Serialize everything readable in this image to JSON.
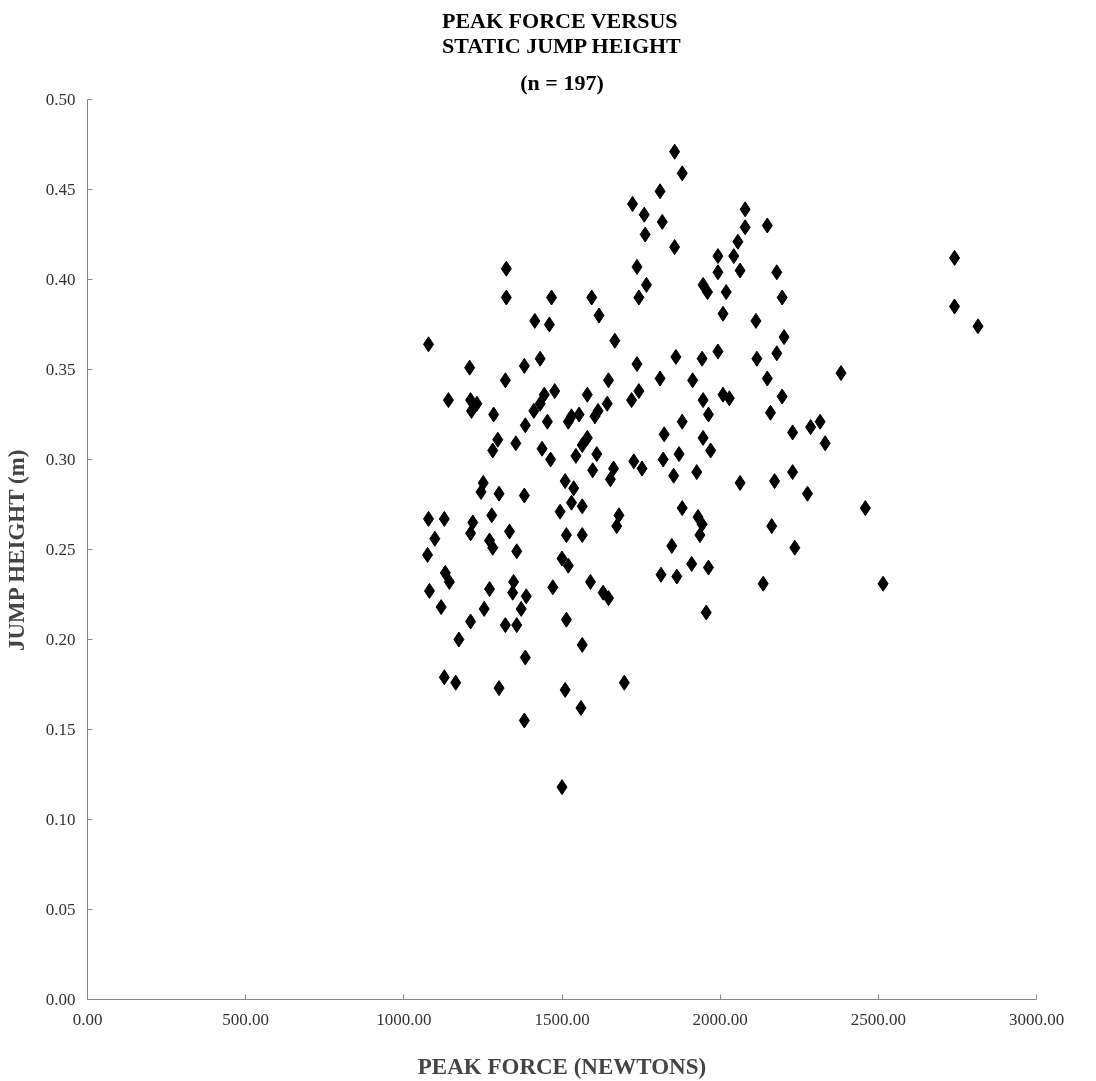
{
  "chart_data": {
    "type": "scatter",
    "title": "PEAK FORCE VERSUS\nSTATIC JUMP HEIGHT",
    "subtitle": "(n = 197)",
    "xlabel": "PEAK FORCE (NEWTONS)",
    "ylabel": "JUMP HEIGHT (m)",
    "marker": "diamond",
    "grid": false,
    "xlim": [
      0,
      3000
    ],
    "xticks": [
      {
        "value": 0,
        "label": "0.00"
      },
      {
        "value": 500,
        "label": "500.00"
      },
      {
        "value": 1000,
        "label": "1000.00"
      },
      {
        "value": 1500,
        "label": "1500.00"
      },
      {
        "value": 2000,
        "label": "2000.00"
      },
      {
        "value": 2500,
        "label": "2500.00"
      },
      {
        "value": 3000,
        "label": "3000.00"
      }
    ],
    "ylim": [
      0,
      0.5
    ],
    "yticks": [
      {
        "value": 0,
        "label": "0.00"
      },
      {
        "value": 0.05,
        "label": "0.05"
      },
      {
        "value": 0.1,
        "label": "0.10"
      },
      {
        "value": 0.15,
        "label": "0.15"
      },
      {
        "value": 0.2,
        "label": "0.20"
      },
      {
        "value": 0.25,
        "label": "0.25"
      },
      {
        "value": 0.3,
        "label": "0.30"
      },
      {
        "value": 0.35,
        "label": "0.35"
      },
      {
        "value": 0.4,
        "label": "0.40"
      },
      {
        "value": 0.45,
        "label": "0.45"
      },
      {
        "value": 0.5,
        "label": "0.50"
      }
    ],
    "series": [
      {
        "color": "#000000",
        "x": [
          1856,
          1880,
          1810,
          1723,
          1760,
          1817,
          1763,
          1856,
          2079,
          2079,
          2056,
          1993,
          2043,
          1993,
          2063,
          1946,
          1960,
          2019,
          2009,
          1324,
          1324,
          1467,
          1594,
          1617,
          1414,
          1460,
          1737,
          1767,
          1743,
          1078,
          1667,
          1208,
          1321,
          1381,
          1431,
          1647,
          1737,
          1810,
          1860,
          1913,
          1943,
          1993,
          1141,
          1211,
          1231,
          1214,
          1284,
          1444,
          1477,
          1431,
          1411,
          1454,
          1384,
          1580,
          1530,
          1520,
          1554,
          1643,
          1614,
          1604,
          1743,
          1720,
          1946,
          2009,
          2029,
          1963,
          1880,
          1823,
          1297,
          1281,
          1354,
          1437,
          1464,
          1580,
          1564,
          1544,
          1610,
          1597,
          1663,
          1653,
          1727,
          1753,
          1820,
          1870,
          1853,
          1946,
          1970,
          1926,
          2063,
          1251,
          1244,
          1301,
          1381,
          1510,
          1537,
          1494,
          1530,
          1564,
          1680,
          1673,
          1078,
          1128,
          1278,
          1218,
          1211,
          1334,
          1271,
          1281,
          1098,
          1075,
          1357,
          1514,
          1564,
          1500,
          1520,
          1880,
          1930,
          1943,
          1936,
          1847,
          1910,
          1963,
          1813,
          1863,
          1956,
          1131,
          1144,
          1081,
          1118,
          1271,
          1347,
          1344,
          1387,
          1371,
          1254,
          1211,
          1321,
          1357,
          1174,
          1471,
          1590,
          1630,
          1647,
          1514,
          1564,
          1384,
          1128,
          1164,
          1301,
          1510,
          1697,
          1560,
          1381,
          1500,
          2149,
          2179,
          2196,
          2113,
          2202,
          2116,
          2179,
          2149,
          2196,
          2159,
          2229,
          2286,
          2316,
          2332,
          2382,
          2741,
          2741,
          2815,
          2172,
          2229,
          2276,
          2459,
          2163,
          2236,
          2136,
          2515
        ],
        "values": [
          0.471,
          0.459,
          0.449,
          0.442,
          0.436,
          0.432,
          0.425,
          0.418,
          0.439,
          0.429,
          0.421,
          0.413,
          0.413,
          0.404,
          0.405,
          0.397,
          0.393,
          0.393,
          0.381,
          0.406,
          0.39,
          0.39,
          0.39,
          0.38,
          0.377,
          0.375,
          0.407,
          0.397,
          0.39,
          0.364,
          0.366,
          0.351,
          0.344,
          0.352,
          0.356,
          0.344,
          0.353,
          0.345,
          0.357,
          0.344,
          0.356,
          0.36,
          0.333,
          0.333,
          0.331,
          0.327,
          0.325,
          0.336,
          0.338,
          0.331,
          0.327,
          0.321,
          0.319,
          0.336,
          0.324,
          0.321,
          0.325,
          0.331,
          0.327,
          0.324,
          0.338,
          0.333,
          0.333,
          0.336,
          0.334,
          0.325,
          0.321,
          0.314,
          0.311,
          0.305,
          0.309,
          0.306,
          0.3,
          0.312,
          0.308,
          0.302,
          0.303,
          0.294,
          0.295,
          0.289,
          0.299,
          0.295,
          0.3,
          0.303,
          0.291,
          0.312,
          0.305,
          0.293,
          0.287,
          0.287,
          0.282,
          0.281,
          0.28,
          0.288,
          0.284,
          0.271,
          0.276,
          0.274,
          0.269,
          0.263,
          0.267,
          0.267,
          0.269,
          0.265,
          0.259,
          0.26,
          0.255,
          0.251,
          0.256,
          0.247,
          0.249,
          0.258,
          0.258,
          0.245,
          0.241,
          0.273,
          0.268,
          0.264,
          0.258,
          0.252,
          0.242,
          0.24,
          0.236,
          0.235,
          0.215,
          0.237,
          0.232,
          0.227,
          0.218,
          0.228,
          0.232,
          0.226,
          0.224,
          0.217,
          0.217,
          0.21,
          0.208,
          0.208,
          0.2,
          0.229,
          0.232,
          0.226,
          0.223,
          0.211,
          0.197,
          0.19,
          0.179,
          0.176,
          0.173,
          0.172,
          0.176,
          0.162,
          0.155,
          0.118,
          0.43,
          0.404,
          0.39,
          0.377,
          0.368,
          0.356,
          0.359,
          0.345,
          0.335,
          0.326,
          0.315,
          0.318,
          0.321,
          0.309,
          0.348,
          0.412,
          0.385,
          0.374,
          0.288,
          0.293,
          0.281,
          0.273,
          0.263,
          0.251,
          0.231,
          0.231
        ]
      }
    ]
  }
}
